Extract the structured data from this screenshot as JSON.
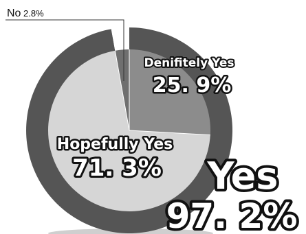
{
  "chart_data": {
    "type": "pie",
    "inner": {
      "slices": [
        {
          "label": "Denifitely Yes",
          "value_text": "25. 9%",
          "value": 25.9,
          "color": "#8c8c8c"
        },
        {
          "label": "Hopefully Yes",
          "value_text": "71. 3%",
          "value": 71.3,
          "color": "#d6d6d6"
        },
        {
          "label": "No",
          "value_text": "2.8%",
          "value": 2.8,
          "color": "#6f6f6f"
        }
      ]
    },
    "outer": {
      "slices": [
        {
          "label": "Yes",
          "value_text": "97. 2%",
          "value": 97.2,
          "color": "#555555"
        },
        {
          "label": "No",
          "value_text": "2.8%",
          "value": 2.8,
          "color": "#ffffff"
        }
      ]
    }
  }
}
